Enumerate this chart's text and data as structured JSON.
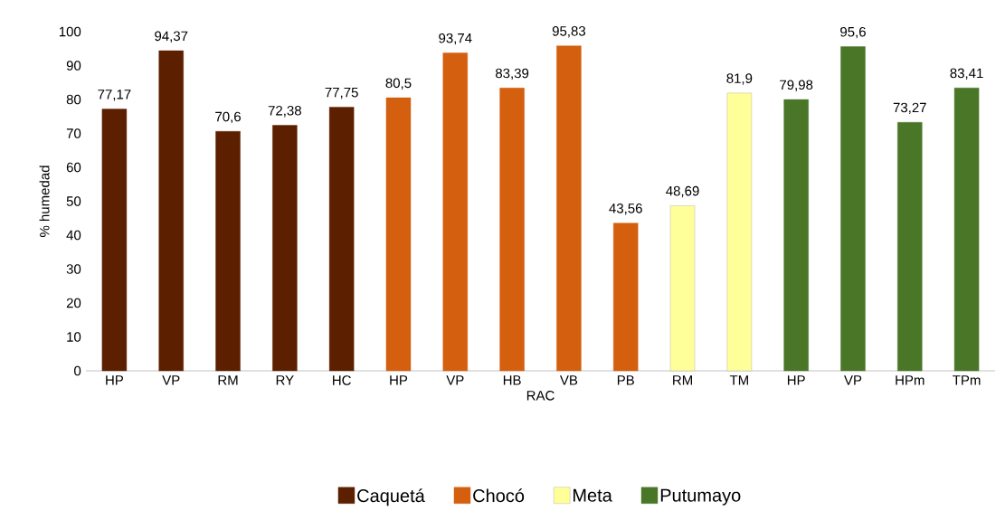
{
  "chart_data": {
    "type": "bar",
    "xlabel": "RAC",
    "ylabel": "% humedad",
    "categories": [
      "HP",
      "VP",
      "RM",
      "RY",
      "HC",
      "HP",
      "VP",
      "HB",
      "VB",
      "PB",
      "RM",
      "TM",
      "HP",
      "VP",
      "HPm",
      "TPm"
    ],
    "series": [
      {
        "name": "Caquetá",
        "color": "#5c1f00",
        "values": [
          77.17,
          94.37,
          70.6,
          72.38,
          77.75,
          null,
          null,
          null,
          null,
          null,
          null,
          null,
          null,
          null,
          null,
          null
        ],
        "value_labels": [
          "77,17",
          "94,37",
          "70,6",
          "72,38",
          "77,75",
          null,
          null,
          null,
          null,
          null,
          null,
          null,
          null,
          null,
          null,
          null
        ]
      },
      {
        "name": "Chocó",
        "color": "#d35f0f",
        "values": [
          null,
          null,
          null,
          null,
          null,
          80.5,
          93.74,
          83.39,
          95.83,
          43.56,
          null,
          null,
          null,
          null,
          null,
          null
        ],
        "value_labels": [
          null,
          null,
          null,
          null,
          null,
          "80,5",
          "93,74",
          "83,39",
          "95,83",
          "43,56",
          null,
          null,
          null,
          null,
          null,
          null
        ]
      },
      {
        "name": "Meta",
        "color": "#ffff99",
        "values": [
          null,
          null,
          null,
          null,
          null,
          null,
          null,
          null,
          null,
          null,
          48.69,
          81.9,
          null,
          null,
          null,
          null
        ],
        "value_labels": [
          null,
          null,
          null,
          null,
          null,
          null,
          null,
          null,
          null,
          null,
          "48,69",
          "81,9",
          null,
          null,
          null,
          null
        ]
      },
      {
        "name": "Putumayo",
        "color": "#4a7628",
        "values": [
          null,
          null,
          null,
          null,
          null,
          null,
          null,
          null,
          null,
          null,
          null,
          null,
          79.98,
          95.6,
          73.27,
          83.41
        ],
        "value_labels": [
          null,
          null,
          null,
          null,
          null,
          null,
          null,
          null,
          null,
          null,
          null,
          null,
          "79,98",
          "95,6",
          "73,27",
          "83,41"
        ]
      }
    ],
    "ylim": [
      0,
      100
    ],
    "yticks": [
      0,
      10,
      20,
      30,
      40,
      50,
      60,
      70,
      80,
      90,
      100
    ],
    "legend": "bottom"
  }
}
